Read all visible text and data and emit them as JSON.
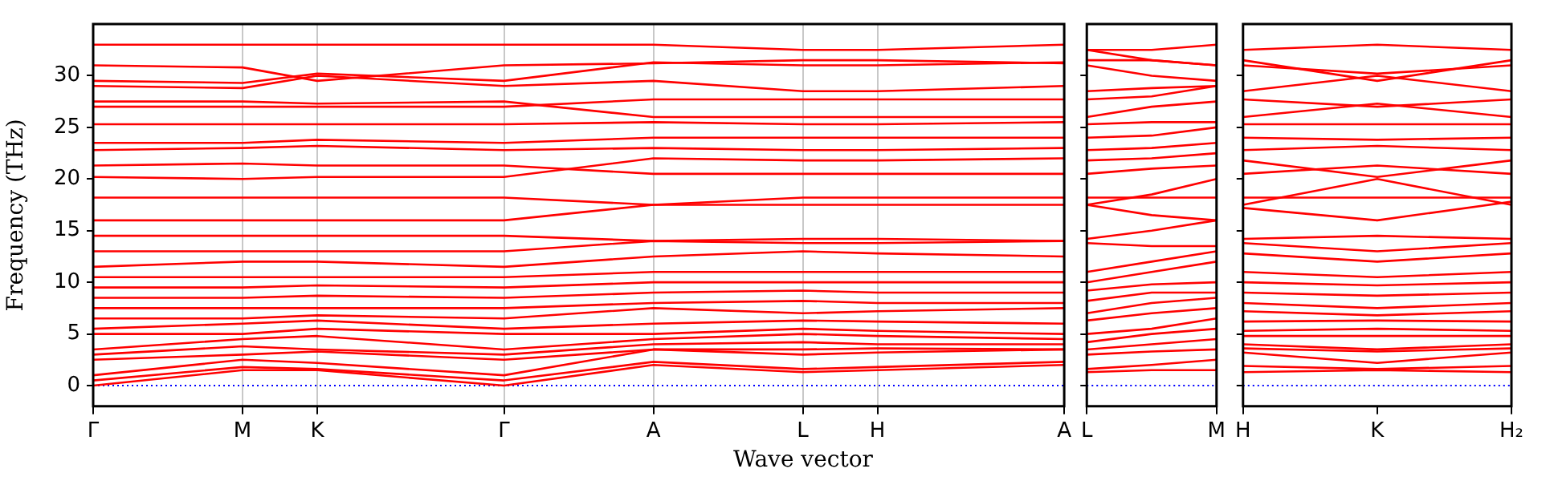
{
  "chart_data": [
    {
      "type": "line",
      "ylabel": "Frequency (THz)",
      "xlabel": "Wave vector",
      "color": "#ff0000",
      "marker": "none",
      "legend": false,
      "grid": "x",
      "ylim": [
        -2,
        35
      ],
      "categories": [
        "Γ",
        null,
        null,
        null,
        "M",
        null,
        "K",
        null,
        null,
        null,
        null,
        "Γ",
        null,
        null,
        null,
        "A",
        null,
        null,
        null,
        "L",
        null,
        "H",
        null,
        null,
        null,
        null,
        "A"
      ],
      "yticks": [
        0,
        5,
        10,
        15,
        20,
        25,
        30
      ],
      "ref_lines": [
        {
          "axis": "y",
          "value": 0,
          "color": "#0000ff",
          "line_style": "dotted"
        }
      ],
      "series": [
        {
          "values": [
            0,
            null,
            null,
            null,
            1.5,
            null,
            1.5,
            null,
            null,
            null,
            null,
            0,
            null,
            null,
            null,
            2,
            null,
            null,
            null,
            1.3,
            null,
            1.5,
            null,
            null,
            null,
            null,
            2
          ]
        },
        {
          "values": [
            0.5,
            null,
            null,
            null,
            1.8,
            null,
            1.6,
            null,
            null,
            null,
            null,
            0.5,
            null,
            null,
            null,
            2.3,
            null,
            null,
            null,
            1.6,
            null,
            1.8,
            null,
            null,
            null,
            null,
            2.3
          ]
        },
        {
          "values": [
            1,
            null,
            null,
            null,
            2.5,
            null,
            2.2,
            null,
            null,
            null,
            null,
            1,
            null,
            null,
            null,
            3.5,
            null,
            null,
            null,
            3,
            null,
            3.2,
            null,
            null,
            null,
            null,
            3.5
          ]
        },
        {
          "values": [
            2.5,
            null,
            null,
            null,
            3,
            null,
            3.3,
            null,
            null,
            null,
            null,
            2.5,
            null,
            null,
            null,
            3.5,
            null,
            null,
            null,
            3.5,
            null,
            3.6,
            null,
            null,
            null,
            null,
            3.5
          ]
        },
        {
          "values": [
            3,
            null,
            null,
            null,
            3.8,
            null,
            3.5,
            null,
            null,
            null,
            null,
            3,
            null,
            null,
            null,
            4,
            null,
            null,
            null,
            4.2,
            null,
            4,
            null,
            null,
            null,
            null,
            4
          ]
        },
        {
          "values": [
            3.5,
            null,
            null,
            null,
            4.5,
            null,
            4.8,
            null,
            null,
            null,
            null,
            3.5,
            null,
            null,
            null,
            4.5,
            null,
            null,
            null,
            5,
            null,
            4.8,
            null,
            null,
            null,
            null,
            4.5
          ]
        },
        {
          "values": [
            5,
            null,
            null,
            null,
            5,
            null,
            5.5,
            null,
            null,
            null,
            null,
            5,
            null,
            null,
            null,
            5,
            null,
            null,
            null,
            5.5,
            null,
            5.3,
            null,
            null,
            null,
            null,
            5
          ]
        },
        {
          "values": [
            5.5,
            null,
            null,
            null,
            6,
            null,
            6.3,
            null,
            null,
            null,
            null,
            5.5,
            null,
            null,
            null,
            6,
            null,
            null,
            null,
            6.3,
            null,
            6.2,
            null,
            null,
            null,
            null,
            6
          ]
        },
        {
          "values": [
            6.5,
            null,
            null,
            null,
            6.5,
            null,
            6.8,
            null,
            null,
            null,
            null,
            6.5,
            null,
            null,
            null,
            7.5,
            null,
            null,
            null,
            7,
            null,
            7.2,
            null,
            null,
            null,
            null,
            7.5
          ]
        },
        {
          "values": [
            7.5,
            null,
            null,
            null,
            7.5,
            null,
            7.5,
            null,
            null,
            null,
            null,
            7.5,
            null,
            null,
            null,
            8,
            null,
            null,
            null,
            8.2,
            null,
            8,
            null,
            null,
            null,
            null,
            8
          ]
        },
        {
          "values": [
            8.5,
            null,
            null,
            null,
            8.5,
            null,
            8.7,
            null,
            null,
            null,
            null,
            8.5,
            null,
            null,
            null,
            9,
            null,
            null,
            null,
            9.2,
            null,
            9,
            null,
            null,
            null,
            null,
            9
          ]
        },
        {
          "values": [
            9.5,
            null,
            null,
            null,
            9.5,
            null,
            9.7,
            null,
            null,
            null,
            null,
            9.5,
            null,
            null,
            null,
            10,
            null,
            null,
            null,
            10,
            null,
            10,
            null,
            null,
            null,
            null,
            10
          ]
        },
        {
          "values": [
            10.5,
            null,
            null,
            null,
            10.5,
            null,
            10.5,
            null,
            null,
            null,
            null,
            10.5,
            null,
            null,
            null,
            11,
            null,
            null,
            null,
            11,
            null,
            11,
            null,
            null,
            null,
            null,
            11
          ]
        },
        {
          "values": [
            11.5,
            null,
            null,
            null,
            12,
            null,
            12,
            null,
            null,
            null,
            null,
            11.5,
            null,
            null,
            null,
            12.5,
            null,
            null,
            null,
            13,
            null,
            12.8,
            null,
            null,
            null,
            null,
            12.5
          ]
        },
        {
          "values": [
            13,
            null,
            null,
            null,
            13,
            null,
            13,
            null,
            null,
            null,
            null,
            13,
            null,
            null,
            null,
            14,
            null,
            null,
            null,
            13.8,
            null,
            13.8,
            null,
            null,
            null,
            null,
            14
          ]
        },
        {
          "values": [
            14.5,
            null,
            null,
            null,
            14.5,
            null,
            14.5,
            null,
            null,
            null,
            null,
            14.5,
            null,
            null,
            null,
            14,
            null,
            null,
            null,
            14.2,
            null,
            14.2,
            null,
            null,
            null,
            null,
            14
          ]
        },
        {
          "values": [
            16,
            null,
            null,
            null,
            16,
            null,
            16,
            null,
            null,
            null,
            null,
            16,
            null,
            null,
            null,
            17.5,
            null,
            null,
            null,
            17.5,
            null,
            17.5,
            null,
            null,
            null,
            null,
            17.5
          ]
        },
        {
          "values": [
            18.2,
            null,
            null,
            null,
            18.2,
            null,
            18.2,
            null,
            null,
            null,
            null,
            18.2,
            null,
            null,
            null,
            17.5,
            null,
            null,
            null,
            18.2,
            null,
            18.2,
            null,
            null,
            null,
            null,
            18.2
          ]
        },
        {
          "values": [
            20.2,
            null,
            null,
            null,
            20,
            null,
            20.2,
            null,
            null,
            null,
            null,
            20.2,
            null,
            null,
            null,
            22,
            null,
            null,
            null,
            21.8,
            null,
            21.8,
            null,
            null,
            null,
            null,
            22
          ]
        },
        {
          "values": [
            21.3,
            null,
            null,
            null,
            21.5,
            null,
            21.3,
            null,
            null,
            null,
            null,
            21.3,
            null,
            null,
            null,
            20.5,
            null,
            null,
            null,
            20.5,
            null,
            20.5,
            null,
            null,
            null,
            null,
            20.5
          ]
        },
        {
          "values": [
            22.8,
            null,
            null,
            null,
            23,
            null,
            23.2,
            null,
            null,
            null,
            null,
            22.8,
            null,
            null,
            null,
            23,
            null,
            null,
            null,
            22.8,
            null,
            22.8,
            null,
            null,
            null,
            null,
            23
          ]
        },
        {
          "values": [
            23.5,
            null,
            null,
            null,
            23.5,
            null,
            23.8,
            null,
            null,
            null,
            null,
            23.5,
            null,
            null,
            null,
            24,
            null,
            null,
            null,
            24,
            null,
            24,
            null,
            null,
            null,
            null,
            24
          ]
        },
        {
          "values": [
            25.3,
            null,
            null,
            null,
            25.3,
            null,
            25.3,
            null,
            null,
            null,
            null,
            25.3,
            null,
            null,
            null,
            25.5,
            null,
            null,
            null,
            25.3,
            null,
            25.3,
            null,
            null,
            null,
            null,
            25.5
          ]
        },
        {
          "values": [
            27,
            null,
            null,
            null,
            27,
            null,
            27,
            null,
            null,
            null,
            null,
            27,
            null,
            null,
            null,
            27.7,
            null,
            null,
            null,
            27.7,
            null,
            27.7,
            null,
            null,
            null,
            null,
            27.7
          ]
        },
        {
          "values": [
            27.5,
            null,
            null,
            null,
            27.5,
            null,
            27.3,
            null,
            null,
            null,
            null,
            27.5,
            null,
            null,
            null,
            26,
            null,
            null,
            null,
            26,
            null,
            26,
            null,
            null,
            null,
            null,
            26
          ]
        },
        {
          "values": [
            29,
            null,
            null,
            null,
            28.8,
            null,
            30,
            null,
            null,
            null,
            null,
            29,
            null,
            null,
            null,
            29.5,
            null,
            null,
            null,
            28.5,
            null,
            28.5,
            null,
            null,
            null,
            null,
            29
          ]
        },
        {
          "values": [
            29.5,
            null,
            null,
            null,
            29.3,
            null,
            30.2,
            null,
            null,
            null,
            null,
            29.5,
            null,
            null,
            null,
            31.3,
            null,
            null,
            null,
            31,
            null,
            31,
            null,
            null,
            null,
            null,
            31.3
          ]
        },
        {
          "values": [
            31,
            null,
            null,
            null,
            30.8,
            null,
            29.5,
            null,
            null,
            null,
            null,
            31,
            null,
            null,
            null,
            31.2,
            null,
            null,
            null,
            31.5,
            null,
            31.5,
            null,
            null,
            null,
            null,
            31.2
          ]
        },
        {
          "values": [
            33,
            null,
            null,
            null,
            33,
            null,
            33,
            null,
            null,
            null,
            null,
            33,
            null,
            null,
            null,
            33,
            null,
            null,
            null,
            32.5,
            null,
            32.5,
            null,
            null,
            null,
            null,
            33
          ]
        }
      ]
    },
    {
      "type": "line",
      "color": "#ff0000",
      "marker": "none",
      "legend": false,
      "tick_labels": "x",
      "ylim": [
        -2,
        35
      ],
      "categories": [
        "L",
        null,
        "M"
      ],
      "yticks": [
        0,
        5,
        10,
        15,
        20,
        25,
        30
      ],
      "ref_lines": [
        {
          "axis": "y",
          "value": 0,
          "color": "#0000ff",
          "line_style": "dotted"
        }
      ],
      "series": [
        {
          "values": [
            1.3,
            1.5,
            1.5
          ]
        },
        {
          "values": [
            1.6,
            2,
            2.5
          ]
        },
        {
          "values": [
            3,
            3.3,
            3.5
          ]
        },
        {
          "values": [
            3.5,
            4,
            4.5
          ]
        },
        {
          "values": [
            4.2,
            5,
            5.5
          ]
        },
        {
          "values": [
            5,
            5.5,
            6.5
          ]
        },
        {
          "values": [
            6.3,
            7,
            7.5
          ]
        },
        {
          "values": [
            7,
            8,
            8.5
          ]
        },
        {
          "values": [
            8.2,
            9,
            9
          ]
        },
        {
          "values": [
            9.2,
            9.8,
            10
          ]
        },
        {
          "values": [
            10,
            11,
            12
          ]
        },
        {
          "values": [
            11,
            12,
            13
          ]
        },
        {
          "values": [
            13.8,
            13.5,
            13.5
          ]
        },
        {
          "values": [
            14.2,
            15,
            16
          ]
        },
        {
          "values": [
            17.5,
            16.5,
            16
          ]
        },
        {
          "values": [
            17.5,
            18.5,
            20
          ]
        },
        {
          "values": [
            18.2,
            18.2,
            18.2
          ]
        },
        {
          "values": [
            20.5,
            21,
            21.3
          ]
        },
        {
          "values": [
            21.8,
            22,
            22.5
          ]
        },
        {
          "values": [
            22.8,
            23,
            23.5
          ]
        },
        {
          "values": [
            24,
            24.2,
            25
          ]
        },
        {
          "values": [
            25.3,
            25.5,
            25.5
          ]
        },
        {
          "values": [
            26,
            27,
            27.5
          ]
        },
        {
          "values": [
            27.7,
            28,
            29
          ]
        },
        {
          "values": [
            28.5,
            28.8,
            29
          ]
        },
        {
          "values": [
            31,
            30,
            29.5
          ]
        },
        {
          "values": [
            31.5,
            31.5,
            31
          ]
        },
        {
          "values": [
            32.5,
            32.5,
            33
          ]
        },
        {
          "values": [
            32.5,
            31.5,
            31
          ]
        }
      ]
    },
    {
      "type": "line",
      "color": "#ff0000",
      "marker": "none",
      "legend": false,
      "tick_labels": "x",
      "ylim": [
        -2,
        35
      ],
      "categories": [
        "H",
        "K",
        "H₂"
      ],
      "yticks": [
        0,
        5,
        10,
        15,
        20,
        25,
        30
      ],
      "ref_lines": [
        {
          "axis": "y",
          "value": 0,
          "color": "#0000ff",
          "line_style": "dotted"
        }
      ],
      "series": [
        {
          "values": [
            1.3,
            1.5,
            1.3
          ]
        },
        {
          "values": [
            1.9,
            1.6,
            1.9
          ]
        },
        {
          "values": [
            3.2,
            2.2,
            3.2
          ]
        },
        {
          "values": [
            3.6,
            3.3,
            3.6
          ]
        },
        {
          "values": [
            4,
            3.5,
            4
          ]
        },
        {
          "values": [
            4.8,
            4.8,
            4.8
          ]
        },
        {
          "values": [
            5.3,
            5.5,
            5.3
          ]
        },
        {
          "values": [
            6.2,
            6.3,
            6.2
          ]
        },
        {
          "values": [
            7.2,
            6.8,
            7.2
          ]
        },
        {
          "values": [
            8,
            7.5,
            8
          ]
        },
        {
          "values": [
            9,
            8.7,
            9
          ]
        },
        {
          "values": [
            10,
            9.7,
            10
          ]
        },
        {
          "values": [
            11,
            10.5,
            11
          ]
        },
        {
          "values": [
            12.8,
            12,
            12.8
          ]
        },
        {
          "values": [
            13.8,
            13,
            13.8
          ]
        },
        {
          "values": [
            14.2,
            14.5,
            14.2
          ]
        },
        {
          "values": [
            17.5,
            20,
            17.5
          ]
        },
        {
          "values": [
            17.2,
            16,
            17.8
          ]
        },
        {
          "values": [
            18.2,
            18.2,
            18.2
          ]
        },
        {
          "values": [
            20.5,
            21.3,
            20.5
          ]
        },
        {
          "values": [
            21.8,
            20.2,
            21.8
          ]
        },
        {
          "values": [
            22.8,
            23.2,
            22.8
          ]
        },
        {
          "values": [
            24,
            23.8,
            24
          ]
        },
        {
          "values": [
            25.3,
            25.3,
            25.3
          ]
        },
        {
          "values": [
            26,
            27.3,
            26
          ]
        },
        {
          "values": [
            27.7,
            27,
            27.7
          ]
        },
        {
          "values": [
            28.5,
            30,
            28.5
          ]
        },
        {
          "values": [
            31,
            30.2,
            31
          ]
        },
        {
          "values": [
            31.5,
            29.5,
            31.5
          ]
        },
        {
          "values": [
            32.5,
            33,
            32.5
          ]
        }
      ]
    }
  ]
}
